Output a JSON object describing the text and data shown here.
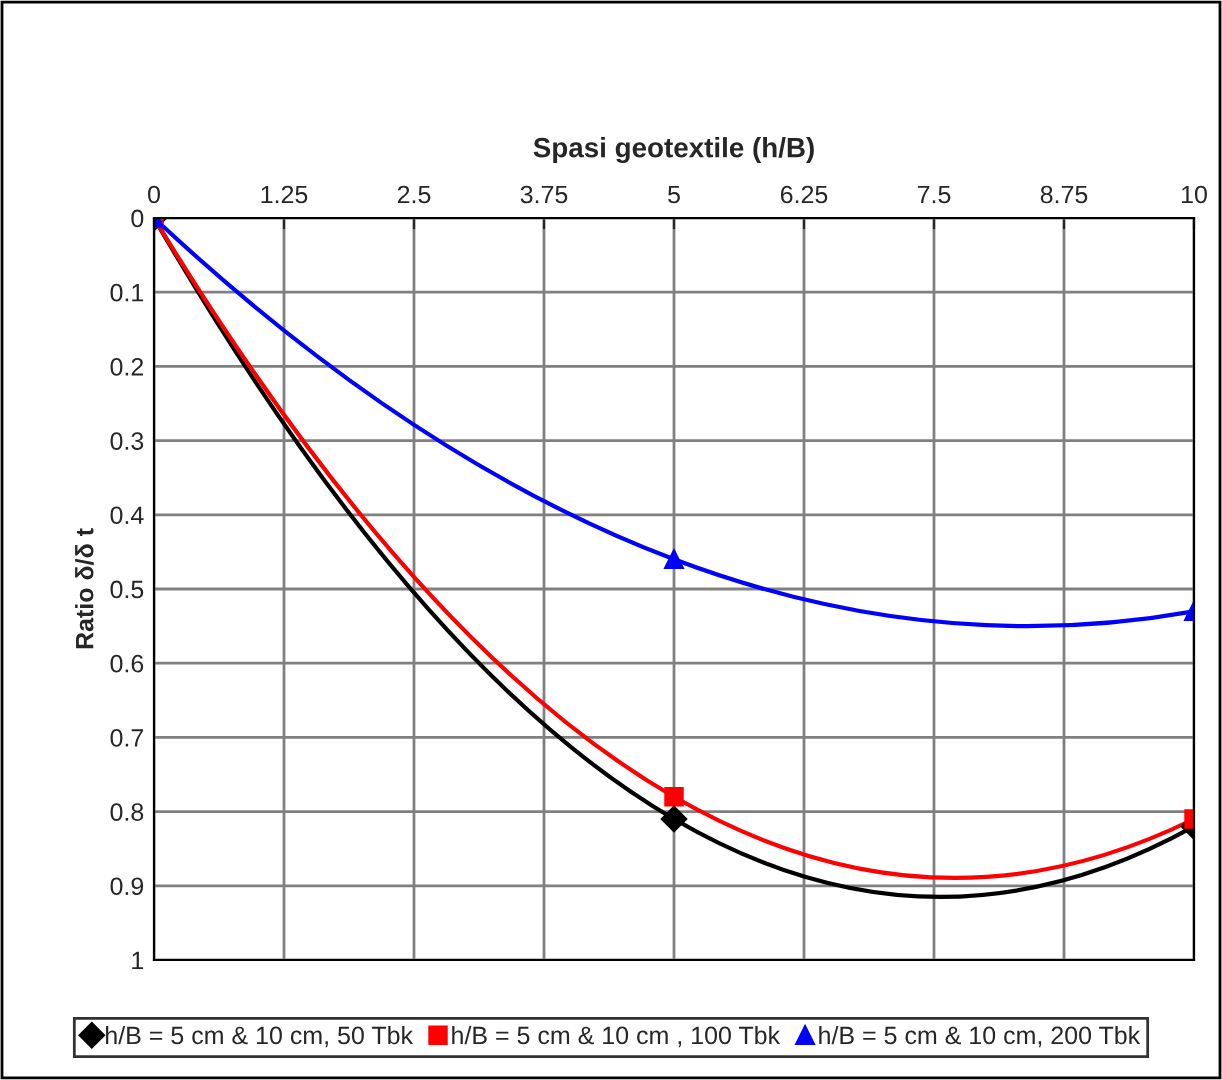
{
  "chart_data": {
    "type": "line",
    "xlabel": "Spasi geotextile (h/B)",
    "ylabel": "Ratio δ/δ t",
    "x": [
      0,
      5,
      10
    ],
    "series": [
      {
        "name": "h/B = 5 cm & 10 cm, 50 Tbk",
        "color": "#000000",
        "marker": "diamond",
        "values": [
          0,
          0.81,
          0.82
        ]
      },
      {
        "name": "h/B = 5 cm & 10 cm , 100 Tbk",
        "color": "#ff0000",
        "marker": "square",
        "values": [
          0,
          0.78,
          0.81
        ]
      },
      {
        "name": "h/B = 5 cm & 10 cm, 200 Tbk",
        "color": "#0000ff",
        "marker": "triangle",
        "values": [
          0,
          0.46,
          0.53
        ]
      }
    ],
    "xlim": [
      0,
      10
    ],
    "xticks": [
      0,
      1.25,
      2.5,
      3.75,
      5,
      6.25,
      7.5,
      8.75,
      10
    ],
    "ylim": [
      1,
      0
    ],
    "yticks": [
      0,
      0.1,
      0.2,
      0.3,
      0.4,
      0.5,
      0.6,
      0.7,
      0.8,
      0.9,
      1
    ],
    "grid": true,
    "legend": "bottom",
    "line_style": "solid"
  }
}
